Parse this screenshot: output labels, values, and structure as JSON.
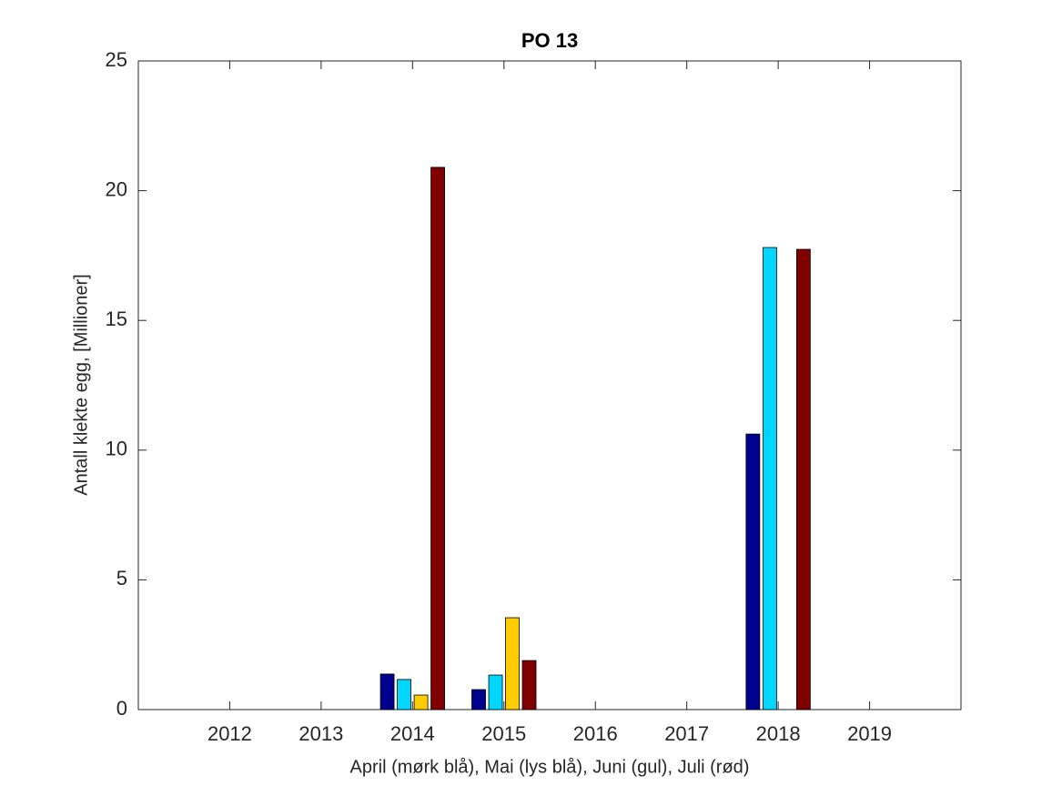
{
  "chart_data": {
    "type": "bar",
    "title": "PO 13",
    "x_label": "April (mørk blå), Mai (lys blå), Juni (gul), Juli (rød)",
    "y_label": "Antall klekte egg, [Millioner]",
    "categories": [
      "2012",
      "2013",
      "2014",
      "2015",
      "2016",
      "2017",
      "2018",
      "2019"
    ],
    "series": [
      {
        "color": "#00008f",
        "values": [
          0,
          0,
          1.37,
          0.77,
          0,
          0,
          10.62,
          0
        ]
      },
      {
        "color": "#00d6ff",
        "values": [
          0,
          0,
          1.16,
          1.33,
          0,
          0,
          17.81,
          0
        ]
      },
      {
        "color": "#ffcc00",
        "values": [
          0,
          0,
          0.56,
          3.54,
          0,
          0,
          0,
          0
        ]
      },
      {
        "color": "#800000",
        "values": [
          0,
          0,
          20.9,
          1.89,
          0,
          0,
          17.74,
          0
        ]
      }
    ],
    "ylim": [
      0,
      25
    ],
    "yticks": [
      0,
      5,
      10,
      15,
      20,
      25
    ],
    "grid": false
  }
}
